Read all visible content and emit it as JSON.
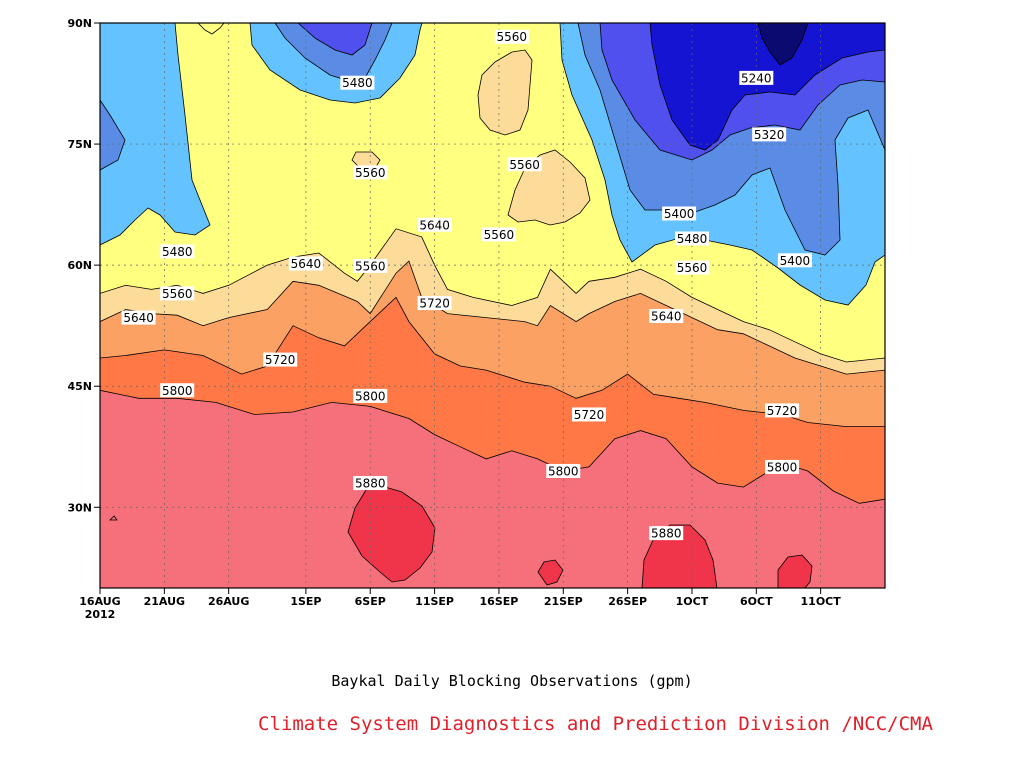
{
  "chart_data": {
    "type": "heatmap",
    "title": "",
    "caption": "Baykal Daily Blocking Observations (gpm)",
    "credit": "Climate System Diagnostics and Prediction Division /NCC/CMA",
    "xlabel": "",
    "ylabel": "",
    "x_range": [
      "2012-08-16",
      "2012-10-16"
    ],
    "x_ticks": [
      {
        "date": "2012-08-16",
        "label": "16AUG",
        "sublabel": "2012"
      },
      {
        "date": "2012-08-21",
        "label": "21AUG"
      },
      {
        "date": "2012-08-26",
        "label": "26AUG"
      },
      {
        "date": "2012-09-01",
        "label": "1SEP"
      },
      {
        "date": "2012-09-06",
        "label": "6SEP"
      },
      {
        "date": "2012-09-11",
        "label": "11SEP"
      },
      {
        "date": "2012-09-16",
        "label": "16SEP"
      },
      {
        "date": "2012-09-21",
        "label": "21SEP"
      },
      {
        "date": "2012-09-26",
        "label": "26SEP"
      },
      {
        "date": "2012-10-01",
        "label": "1OCT"
      },
      {
        "date": "2012-10-06",
        "label": "6OCT"
      },
      {
        "date": "2012-10-11",
        "label": "11OCT"
      }
    ],
    "y_range": [
      20,
      90
    ],
    "y_ticks": [
      {
        "value": 30,
        "label": "30N"
      },
      {
        "value": 45,
        "label": "45N"
      },
      {
        "value": 60,
        "label": "60N"
      },
      {
        "value": 75,
        "label": "75N"
      },
      {
        "value": 90,
        "label": "90N"
      }
    ],
    "grid": true,
    "contour_levels": [
      5160,
      5240,
      5320,
      5400,
      5480,
      5560,
      5640,
      5720,
      5800,
      5880
    ],
    "colors": {
      "below_5160": "#0a0a70",
      "5160_5240": "#1414d2",
      "5240_5320": "#5050ef",
      "5320_5400": "#5a8ce6",
      "5400_5480": "#64c3ff",
      "5480_5560": "#ffff80",
      "5560_5640": "#fddc9a",
      "5640_5720": "#fca164",
      "5720_5800": "#ff7846",
      "5800_5880": "#f5707a",
      "above_5880": "#f0344a"
    },
    "boundaries": [
      {
        "level": 5720,
        "points": [
          [
            0,
            48.5
          ],
          [
            2,
            48.8
          ],
          [
            5,
            49.5
          ],
          [
            8,
            48.8
          ],
          [
            11,
            46.5
          ],
          [
            13,
            47.5
          ],
          [
            15,
            52.5
          ],
          [
            17,
            51
          ],
          [
            19,
            50
          ],
          [
            21,
            53
          ],
          [
            23,
            56
          ],
          [
            24,
            53
          ],
          [
            26,
            49
          ],
          [
            28,
            47.5
          ],
          [
            30,
            47
          ],
          [
            33,
            45.5
          ],
          [
            35,
            45
          ],
          [
            37,
            43.5
          ],
          [
            39,
            44.5
          ],
          [
            41,
            46.5
          ],
          [
            43,
            44
          ],
          [
            45,
            43.5
          ],
          [
            47,
            43
          ],
          [
            50,
            42
          ],
          [
            53,
            41.5
          ],
          [
            55,
            40.5
          ],
          [
            58,
            40
          ],
          [
            61,
            40
          ]
        ]
      },
      {
        "level": 5800,
        "points": [
          [
            0,
            44.5
          ],
          [
            3,
            43.5
          ],
          [
            6,
            43.5
          ],
          [
            9,
            43
          ],
          [
            12,
            41.5
          ],
          [
            15,
            41.8
          ],
          [
            18,
            43
          ],
          [
            21,
            42.5
          ],
          [
            24,
            41
          ],
          [
            26,
            39
          ],
          [
            28,
            37.5
          ],
          [
            30,
            36
          ],
          [
            32,
            37
          ],
          [
            34,
            36
          ],
          [
            36,
            34.5
          ],
          [
            38,
            35
          ],
          [
            40,
            38.5
          ],
          [
            42,
            39.5
          ],
          [
            44,
            38.5
          ],
          [
            46,
            35
          ],
          [
            48,
            33
          ],
          [
            50,
            32.5
          ],
          [
            52,
            34.5
          ],
          [
            53,
            35.5
          ],
          [
            55,
            34.5
          ],
          [
            57,
            32
          ],
          [
            59,
            30.5
          ],
          [
            61,
            31
          ]
        ]
      },
      {
        "level": 5640,
        "points": [
          [
            0,
            53
          ],
          [
            2,
            54.5
          ],
          [
            4,
            54
          ],
          [
            6,
            53.8
          ],
          [
            8,
            52.5
          ],
          [
            10,
            53.5
          ],
          [
            13,
            54.5
          ],
          [
            15,
            58
          ],
          [
            17,
            57.5
          ],
          [
            20,
            55.5
          ],
          [
            21,
            54
          ],
          [
            23,
            59
          ],
          [
            24,
            60.5
          ],
          [
            25,
            56
          ],
          [
            27,
            54
          ],
          [
            30,
            53.5
          ],
          [
            33,
            53
          ],
          [
            34,
            52.5
          ],
          [
            35,
            55
          ],
          [
            37,
            53
          ],
          [
            38,
            54
          ],
          [
            40,
            55.5
          ],
          [
            42,
            56.5
          ],
          [
            44,
            55
          ],
          [
            46,
            53.5
          ],
          [
            48,
            52
          ],
          [
            50,
            51.5
          ],
          [
            52,
            50
          ],
          [
            54,
            48.5
          ],
          [
            56,
            47.5
          ],
          [
            58,
            46.5
          ],
          [
            61,
            47
          ]
        ]
      },
      {
        "level": 5560,
        "points": [
          [
            0,
            56.5
          ],
          [
            2,
            57.5
          ],
          [
            4,
            57
          ],
          [
            6,
            57.5
          ],
          [
            8,
            56.5
          ],
          [
            10,
            57.5
          ],
          [
            13,
            60
          ],
          [
            15,
            61
          ],
          [
            17,
            61.5
          ],
          [
            19,
            59
          ],
          [
            20,
            58
          ],
          [
            21,
            60
          ],
          [
            23,
            64.5
          ],
          [
            25,
            63.5
          ],
          [
            26,
            60
          ],
          [
            27,
            57
          ],
          [
            29,
            56
          ],
          [
            32,
            55
          ],
          [
            34,
            56
          ],
          [
            35,
            59.5
          ],
          [
            37,
            56.5
          ],
          [
            38,
            58
          ],
          [
            40,
            58.5
          ],
          [
            42,
            59.5
          ],
          [
            44,
            58
          ],
          [
            46,
            56
          ],
          [
            48,
            54.5
          ],
          [
            50,
            53
          ],
          [
            52,
            52
          ],
          [
            54,
            50.5
          ],
          [
            56,
            49
          ],
          [
            58,
            48
          ],
          [
            61,
            48.5
          ]
        ]
      }
    ],
    "contour_labels": [
      {
        "level": 5800,
        "date": "2012-08-22",
        "lat": 44.5
      },
      {
        "level": 5800,
        "date": "2012-09-06",
        "lat": 43.8
      },
      {
        "level": 5800,
        "date": "2012-09-21",
        "lat": 34.5
      },
      {
        "level": 5800,
        "date": "2012-10-08",
        "lat": 35.0
      },
      {
        "level": 5880,
        "date": "2012-09-06",
        "lat": 33.0
      },
      {
        "level": 5880,
        "date": "2012-09-29",
        "lat": 26.8
      },
      {
        "level": 5720,
        "date": "2012-08-30",
        "lat": 48.3
      },
      {
        "level": 5720,
        "date": "2012-09-11",
        "lat": 55.3
      },
      {
        "level": 5720,
        "date": "2012-09-23",
        "lat": 41.5
      },
      {
        "level": 5720,
        "date": "2012-10-08",
        "lat": 42.0
      },
      {
        "level": 5640,
        "date": "2012-08-19",
        "lat": 53.5
      },
      {
        "level": 5640,
        "date": "2012-09-01",
        "lat": 60.2
      },
      {
        "level": 5640,
        "date": "2012-09-11",
        "lat": 65.0
      },
      {
        "level": 5640,
        "date": "2012-09-29",
        "lat": 53.7
      },
      {
        "level": 5560,
        "date": "2012-08-22",
        "lat": 56.5
      },
      {
        "level": 5560,
        "date": "2012-09-06",
        "lat": 59.9
      },
      {
        "level": 5560,
        "date": "2012-09-16",
        "lat": 63.8
      },
      {
        "level": 5560,
        "date": "2012-09-18",
        "lat": 72.5
      },
      {
        "level": 5560,
        "date": "2012-09-17",
        "lat": 88.3
      },
      {
        "level": 5560,
        "date": "2012-09-06",
        "lat": 71.5
      },
      {
        "level": 5560,
        "date": "2012-10-01",
        "lat": 59.7
      },
      {
        "level": 5480,
        "date": "2012-08-22",
        "lat": 61.7
      },
      {
        "level": 5480,
        "date": "2012-09-05",
        "lat": 82.6
      },
      {
        "level": 5480,
        "date": "2012-10-01",
        "lat": 63.3
      },
      {
        "level": 5400,
        "date": "2012-09-30",
        "lat": 66.4
      },
      {
        "level": 5400,
        "date": "2012-10-09",
        "lat": 60.6
      },
      {
        "level": 5320,
        "date": "2012-10-07",
        "lat": 76.2
      },
      {
        "level": 5240,
        "date": "2012-10-06",
        "lat": 83.2
      }
    ]
  }
}
